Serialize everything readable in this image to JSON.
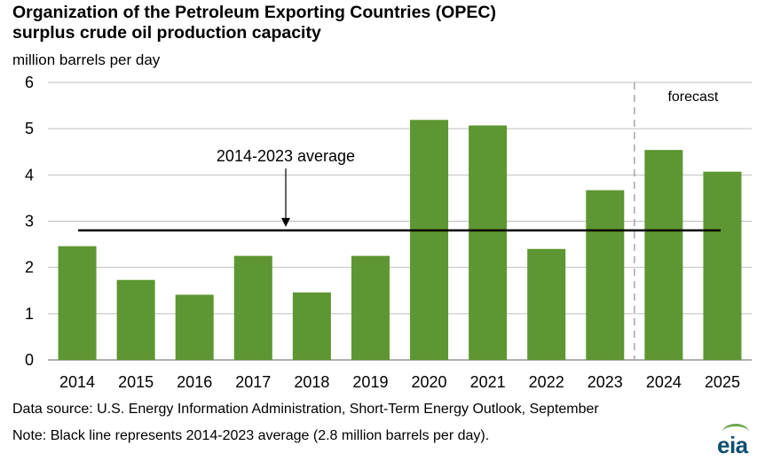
{
  "header": {
    "title_line1": "Organization of the Petroleum Exporting Countries (OPEC)",
    "title_line2": "surplus crude oil production capacity",
    "units": "million  barrels per day"
  },
  "chart_data": {
    "type": "bar",
    "categories": [
      "2014",
      "2015",
      "2016",
      "2017",
      "2018",
      "2019",
      "2020",
      "2021",
      "2022",
      "2023",
      "2024",
      "2025"
    ],
    "values": [
      2.46,
      1.73,
      1.41,
      2.25,
      1.46,
      2.25,
      5.19,
      5.07,
      2.4,
      3.67,
      4.54,
      4.07
    ],
    "ylim": [
      0,
      6
    ],
    "yticks": [
      "0",
      "1",
      "2",
      "3",
      "4",
      "5",
      "6"
    ],
    "average": {
      "value": 2.8,
      "label": "2014-2023 average"
    },
    "forecast_label": "forecast",
    "forecast_start_category": "2024",
    "bar_color": "#5d9632",
    "grid": true
  },
  "footer": {
    "source": "Data source: U.S. Energy Information Administration, Short-Term Energy Outlook, September",
    "note": "Note: Black line represents 2014-2023 average (2.8 million barrels per day).",
    "logo": "eia"
  }
}
